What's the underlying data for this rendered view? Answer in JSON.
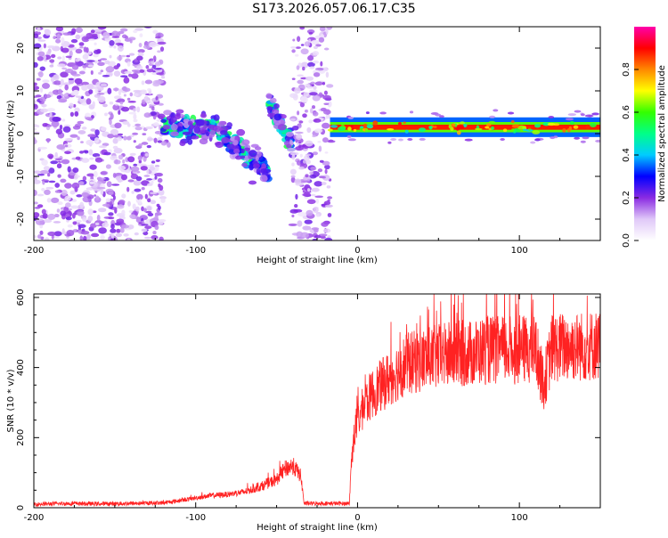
{
  "title": "S173.2026.057.06.17.C35",
  "chart_data": [
    {
      "type": "heatmap",
      "xlabel": "Height of straight line (km)",
      "ylabel": "Frequency (Hz)",
      "xlim": [
        -200,
        150
      ],
      "ylim": [
        -25,
        25
      ],
      "xticks": [
        -200,
        -100,
        0,
        100
      ],
      "yticks": [
        -20,
        -10,
        0,
        10,
        20
      ],
      "colorbar": {
        "label": "Normalized spectral amplitude",
        "range": [
          0,
          1
        ],
        "ticks": [
          0.0,
          0.2,
          0.4,
          0.6,
          0.8
        ],
        "colors": [
          "#ffffff",
          "#e0c8f8",
          "#8a2be2",
          "#0000ff",
          "#00ccff",
          "#00ff88",
          "#33ff00",
          "#ffff00",
          "#ff8800",
          "#ff0000",
          "#ff00aa"
        ]
      },
      "regions": [
        {
          "name": "scattered noise",
          "x": [
            -200,
            -120
          ],
          "freq_range": [
            -25,
            25
          ],
          "amplitude": 0.15
        },
        {
          "name": "drifting feature 1",
          "x": [
            -120,
            -90
          ],
          "freq_center": 1.5,
          "amplitude": 0.35
        },
        {
          "name": "drifting feature 2",
          "x": [
            -90,
            -55
          ],
          "freq_start": 2,
          "freq_end": -9,
          "amplitude": 0.35
        },
        {
          "name": "drifting feature 3",
          "x": [
            -55,
            -40
          ],
          "freq_start": 7,
          "freq_end": -3,
          "amplitude": 0.35
        },
        {
          "name": "noise band",
          "x": [
            -40,
            -17
          ],
          "freq_range": [
            -25,
            25
          ],
          "amplitude": 0.15
        },
        {
          "name": "stable tone",
          "x": [
            -17,
            150
          ],
          "freq_center": 1.5,
          "amplitude": 0.9
        }
      ]
    },
    {
      "type": "line",
      "xlabel": "Height of straight line (km)",
      "ylabel": "SNR (10 * v/v)",
      "xlim": [
        -200,
        150
      ],
      "ylim": [
        0,
        610
      ],
      "xticks": [
        -200,
        -100,
        0,
        100
      ],
      "yticks": [
        0,
        200,
        400,
        600
      ],
      "color": "#ff2222",
      "series": [
        {
          "name": "SNR",
          "x": [
            -200,
            -180,
            -160,
            -140,
            -120,
            -110,
            -100,
            -90,
            -80,
            -70,
            -60,
            -50,
            -45,
            -40,
            -35,
            -33,
            -32,
            -25,
            -15,
            -5,
            -4,
            -2,
            0,
            5,
            10,
            15,
            20,
            25,
            30,
            40,
            50,
            60,
            70,
            80,
            90,
            100,
            110,
            115,
            120,
            130,
            140,
            150
          ],
          "y": [
            10,
            12,
            11,
            12,
            14,
            20,
            28,
            35,
            38,
            45,
            60,
            80,
            110,
            120,
            90,
            12,
            12,
            12,
            12,
            12,
            120,
            210,
            250,
            300,
            330,
            350,
            370,
            390,
            410,
            420,
            430,
            440,
            440,
            450,
            450,
            450,
            455,
            350,
            455,
            460,
            460,
            465
          ]
        }
      ]
    }
  ]
}
